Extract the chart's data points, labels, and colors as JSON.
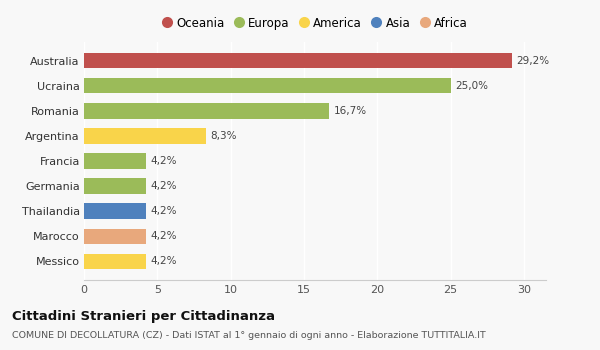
{
  "countries": [
    "Australia",
    "Ucraina",
    "Romania",
    "Argentina",
    "Francia",
    "Germania",
    "Thailandia",
    "Marocco",
    "Messico"
  ],
  "values": [
    29.2,
    25.0,
    16.7,
    8.3,
    4.2,
    4.2,
    4.2,
    4.2,
    4.2
  ],
  "labels": [
    "29,2%",
    "25,0%",
    "16,7%",
    "8,3%",
    "4,2%",
    "4,2%",
    "4,2%",
    "4,2%",
    "4,2%"
  ],
  "colors": [
    "#c0504d",
    "#9bbb59",
    "#9bbb59",
    "#f9d44a",
    "#9bbb59",
    "#9bbb59",
    "#4f81bd",
    "#e8a87c",
    "#f9d44a"
  ],
  "legend": [
    {
      "label": "Oceania",
      "color": "#c0504d"
    },
    {
      "label": "Europa",
      "color": "#9bbb59"
    },
    {
      "label": "America",
      "color": "#f9d44a"
    },
    {
      "label": "Asia",
      "color": "#4f81bd"
    },
    {
      "label": "Africa",
      "color": "#e8a87c"
    }
  ],
  "xlim": [
    0,
    31.5
  ],
  "xticks": [
    0,
    5,
    10,
    15,
    20,
    25,
    30
  ],
  "title": "Cittadini Stranieri per Cittadinanza",
  "subtitle": "COMUNE DI DECOLLATURA (CZ) - Dati ISTAT al 1° gennaio di ogni anno - Elaborazione TUTTITALIA.IT",
  "background_color": "#f8f8f8"
}
